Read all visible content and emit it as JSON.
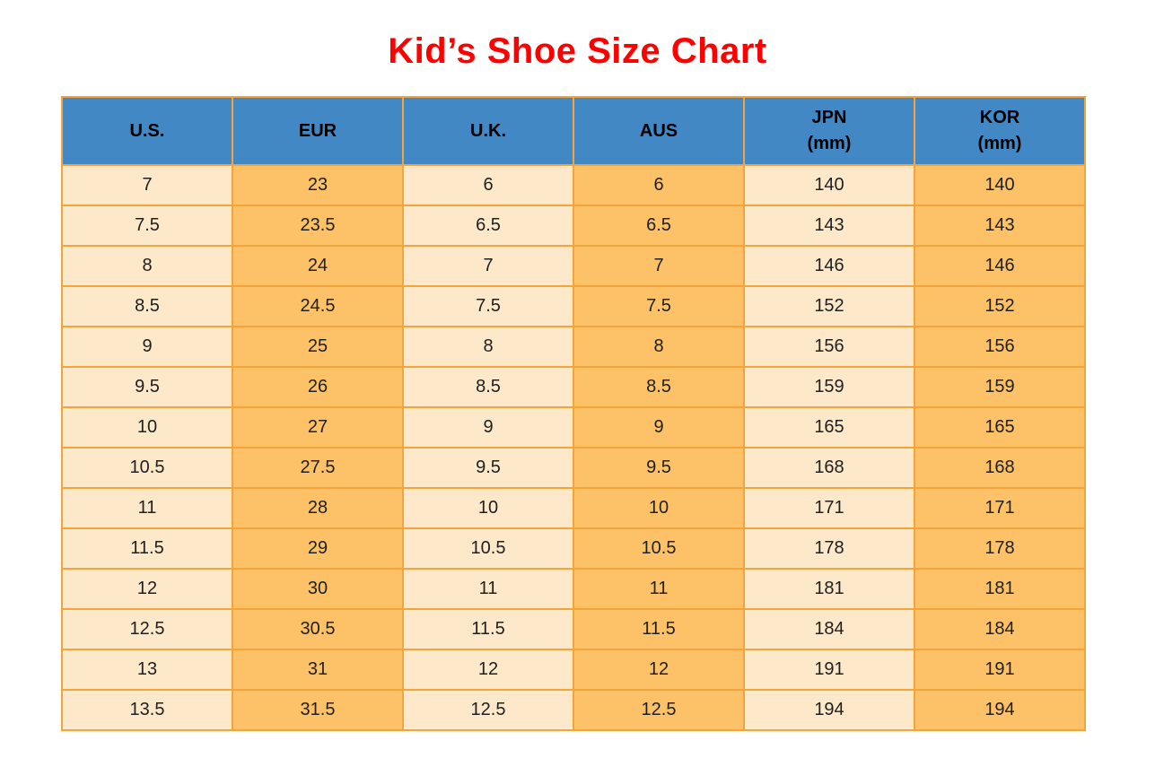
{
  "page": {
    "title": "Kid’s Shoe Size Chart"
  },
  "colors": {
    "title_red": "#FE0000",
    "header_blue": "#4288C5",
    "cell_cream": "#FDE9C9",
    "cell_orange": "#FDC268",
    "grid_orange": "#F5A43C",
    "header_text": "#000000",
    "cell_text": "#202020",
    "page_background": "#FFFFFF"
  },
  "chart_data": {
    "type": "table",
    "title": "Kid’s Shoe Size Chart",
    "columns": [
      {
        "label": "U.S.",
        "sub": ""
      },
      {
        "label": "EUR",
        "sub": ""
      },
      {
        "label": "U.K.",
        "sub": ""
      },
      {
        "label": "AUS",
        "sub": ""
      },
      {
        "label": "JPN",
        "sub": "(mm)"
      },
      {
        "label": "KOR",
        "sub": "(mm)"
      }
    ],
    "rows": [
      [
        "7",
        "23",
        "6",
        "6",
        "140",
        "140"
      ],
      [
        "7.5",
        "23.5",
        "6.5",
        "6.5",
        "143",
        "143"
      ],
      [
        "8",
        "24",
        "7",
        "7",
        "146",
        "146"
      ],
      [
        "8.5",
        "24.5",
        "7.5",
        "7.5",
        "152",
        "152"
      ],
      [
        "9",
        "25",
        "8",
        "8",
        "156",
        "156"
      ],
      [
        "9.5",
        "26",
        "8.5",
        "8.5",
        "159",
        "159"
      ],
      [
        "10",
        "27",
        "9",
        "9",
        "165",
        "165"
      ],
      [
        "10.5",
        "27.5",
        "9.5",
        "9.5",
        "168",
        "168"
      ],
      [
        "11",
        "28",
        "10",
        "10",
        "171",
        "171"
      ],
      [
        "11.5",
        "29",
        "10.5",
        "10.5",
        "178",
        "178"
      ],
      [
        "12",
        "30",
        "11",
        "11",
        "181",
        "181"
      ],
      [
        "12.5",
        "30.5",
        "11.5",
        "11.5",
        "184",
        "184"
      ],
      [
        "13",
        "31",
        "12",
        "12",
        "191",
        "191"
      ],
      [
        "13.5",
        "31.5",
        "12.5",
        "12.5",
        "194",
        "194"
      ]
    ]
  }
}
